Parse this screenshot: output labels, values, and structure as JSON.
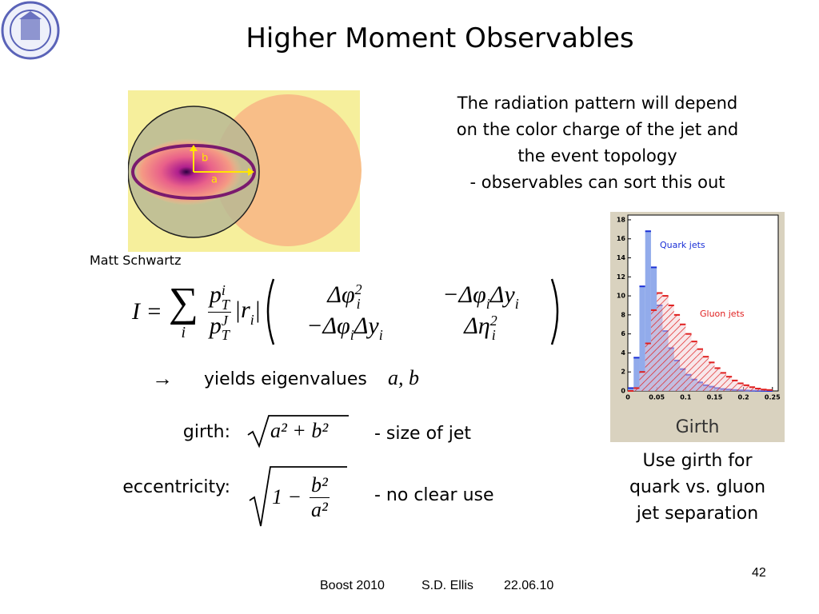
{
  "title": "Higher Moment Observables",
  "jet_image": {
    "caption": "Matt Schwartz",
    "axis_labels": [
      "b",
      "a"
    ]
  },
  "description": [
    "The radiation pattern will depend",
    "on the color charge of the jet and",
    "the event topology",
    "- observables can sort this out"
  ],
  "equation": {
    "lhs": "I =",
    "sum": "∑",
    "sum_index": "i",
    "numerator": {
      "text": "p",
      "sup": "i",
      "sub": "T"
    },
    "denominator": {
      "text": "p",
      "sup": "J",
      "sub": "T"
    },
    "radius": [
      {
        "text": "|r",
        "sub": "i"
      },
      {
        "text": "|"
      }
    ],
    "matrix": [
      [
        [
          {
            "text": "Δφ",
            "sub": "i",
            "sup": "2"
          }
        ],
        [
          {
            "text": "−Δφ",
            "sub": "i"
          },
          {
            "text": "Δy",
            "sub": "i"
          }
        ]
      ],
      [
        [
          {
            "text": "−Δφ",
            "sub": "i"
          },
          {
            "text": "Δy",
            "sub": "i"
          }
        ],
        [
          {
            "text": "Δη",
            "sub": "i",
            "sup": "2"
          }
        ]
      ]
    ]
  },
  "eigen_line": {
    "arrow": "→",
    "text": "yields eigenvalues",
    "math": "a, b"
  },
  "girth": {
    "label": "girth:",
    "formula": "a² + b²",
    "note": "- size of jet"
  },
  "eccentricity": {
    "label": "eccentricity:",
    "formula_lead": "1 −",
    "numerator": "b²",
    "denominator": "a²",
    "note": "- no clear use"
  },
  "inset_chart": {
    "type": "histogram",
    "xlabel": "Girth",
    "bins": [
      0,
      0.01,
      0.02,
      0.03,
      0.04,
      0.05,
      0.06,
      0.07,
      0.08,
      0.09,
      0.1,
      0.11,
      0.12,
      0.13,
      0.14,
      0.15,
      0.16,
      0.17,
      0.18,
      0.19,
      0.2,
      0.21,
      0.22,
      0.23,
      0.24,
      0.25
    ],
    "series": [
      {
        "name": "Quark jets",
        "color": "#1a2fd6",
        "values": [
          0.3,
          3.5,
          11,
          16.8,
          13,
          9,
          6.3,
          4.5,
          3.2,
          2.3,
          1.7,
          1.2,
          0.9,
          0.6,
          0.45,
          0.3,
          0.2,
          0.15,
          0.1,
          0.07,
          0.05,
          0.03,
          0.02,
          0.01,
          0
        ]
      },
      {
        "name": "Gluon jets",
        "color": "#e02020",
        "values": [
          0,
          0.3,
          2,
          5,
          8.5,
          10.3,
          10,
          9,
          8,
          7,
          6,
          5.2,
          4.4,
          3.6,
          3,
          2.4,
          1.9,
          1.5,
          1.1,
          0.8,
          0.6,
          0.4,
          0.25,
          0.15,
          0.1
        ]
      }
    ],
    "xlim": [
      0,
      0.26
    ],
    "ylim": [
      0,
      18.5
    ],
    "xticks": [
      0,
      0.05,
      0.1,
      0.15,
      0.2,
      0.25
    ],
    "yticks": [
      0,
      2,
      4,
      6,
      8,
      10,
      12,
      14,
      16,
      18
    ]
  },
  "conclusion": [
    "Use girth for",
    "quark vs. gluon",
    "jet separation"
  ],
  "footer": {
    "event": "Boost 2010",
    "author": "S.D. Ellis",
    "date": "22.06.10",
    "page": "42"
  }
}
